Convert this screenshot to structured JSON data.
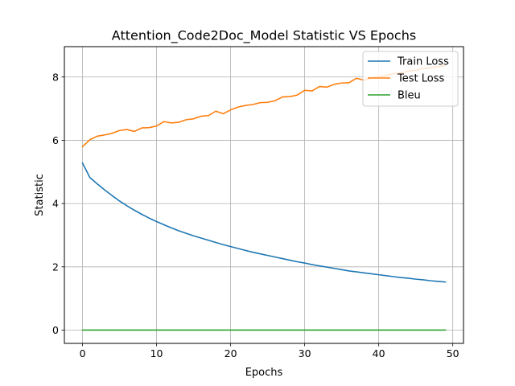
{
  "chart_data": {
    "type": "line",
    "title": "Attention_Code2Doc_Model Statistic VS Epochs",
    "xlabel": "Epochs",
    "ylabel": "Statistic",
    "xlim": [
      -2.45,
      51.45
    ],
    "ylim": [
      -0.42,
      8.96
    ],
    "xticks": [
      0,
      10,
      20,
      30,
      40,
      50
    ],
    "yticks": [
      0,
      2,
      4,
      6,
      8
    ],
    "grid": true,
    "legend_position": "top-right",
    "x": [
      0,
      1,
      2,
      3,
      4,
      5,
      6,
      7,
      8,
      9,
      10,
      11,
      12,
      13,
      14,
      15,
      16,
      17,
      18,
      19,
      20,
      21,
      22,
      23,
      24,
      25,
      26,
      27,
      28,
      29,
      30,
      31,
      32,
      33,
      34,
      35,
      36,
      37,
      38,
      39,
      40,
      41,
      42,
      43,
      44,
      45,
      46,
      47,
      48,
      49
    ],
    "series": [
      {
        "name": "Train Loss",
        "color": "#1f77b4",
        "values": [
          5.28,
          4.82,
          4.62,
          4.43,
          4.25,
          4.08,
          3.93,
          3.79,
          3.66,
          3.54,
          3.43,
          3.33,
          3.23,
          3.14,
          3.06,
          2.98,
          2.91,
          2.84,
          2.77,
          2.7,
          2.64,
          2.58,
          2.52,
          2.46,
          2.41,
          2.36,
          2.31,
          2.26,
          2.21,
          2.16,
          2.12,
          2.07,
          2.03,
          1.99,
          1.95,
          1.91,
          1.87,
          1.84,
          1.81,
          1.78,
          1.75,
          1.72,
          1.69,
          1.66,
          1.64,
          1.61,
          1.59,
          1.56,
          1.54,
          1.52
        ]
      },
      {
        "name": "Test Loss",
        "color": "#ff7f0e",
        "values": [
          5.8,
          6.02,
          6.13,
          6.17,
          6.22,
          6.31,
          6.34,
          6.28,
          6.39,
          6.4,
          6.45,
          6.59,
          6.55,
          6.57,
          6.65,
          6.68,
          6.76,
          6.78,
          6.92,
          6.84,
          6.96,
          7.05,
          7.1,
          7.13,
          7.19,
          7.2,
          7.25,
          7.37,
          7.38,
          7.43,
          7.58,
          7.56,
          7.7,
          7.68,
          7.77,
          7.81,
          7.82,
          7.96,
          7.9,
          7.97,
          8.01,
          8.05,
          8.1,
          8.13,
          8.18,
          8.22,
          8.27,
          8.29,
          8.33,
          8.37
        ]
      },
      {
        "name": "Bleu",
        "color": "#2ca02c",
        "values": [
          0.0,
          0.0,
          0.0,
          0.0,
          0.0,
          0.0,
          0.0,
          0.0,
          0.0,
          0.0,
          0.0,
          0.0,
          0.0,
          0.0,
          0.0,
          0.0,
          0.0,
          0.0,
          0.0,
          0.0,
          0.0,
          0.0,
          0.0,
          0.0,
          0.0,
          0.0,
          0.0,
          0.0,
          0.0,
          0.0,
          0.0,
          0.0,
          0.0,
          0.0,
          0.0,
          0.0,
          0.0,
          0.0,
          0.0,
          0.0,
          0.0,
          0.0,
          0.0,
          0.0,
          0.0,
          0.0,
          0.0,
          0.0,
          0.0,
          0.0
        ]
      }
    ]
  }
}
